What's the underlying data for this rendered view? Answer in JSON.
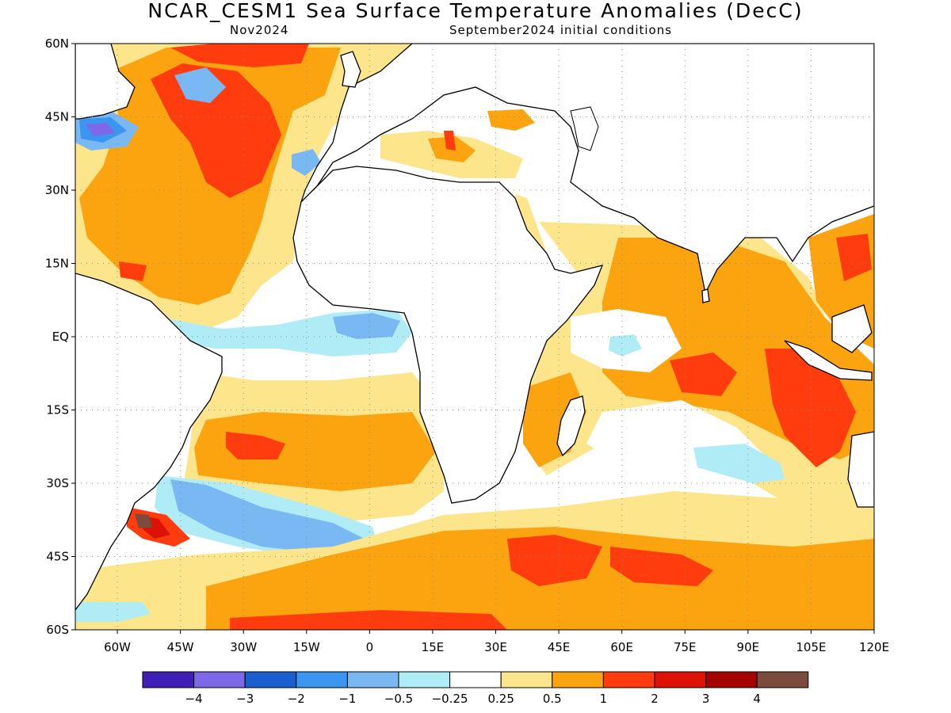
{
  "title": "NCAR_CESM1 Sea Surface Temperature Anomalies (DecC)",
  "subtitle_left": "Nov2024",
  "subtitle_right": "September2024 initial conditions",
  "map": {
    "lon_range": [
      -70,
      120
    ],
    "lat_range": [
      -60,
      60
    ],
    "y_tick_labels": [
      "60N",
      "45N",
      "30N",
      "15N",
      "EQ",
      "15S",
      "30S",
      "45S",
      "60S"
    ],
    "x_tick_labels": [
      "60W",
      "45W",
      "30W",
      "15W",
      "0",
      "15E",
      "30E",
      "45E",
      "60E",
      "75E",
      "90E",
      "105E",
      "120E"
    ],
    "grid": "dotted"
  },
  "colorbar": {
    "colors": [
      "#3f1fb5",
      "#7d68e8",
      "#1a5fcf",
      "#3a96f0",
      "#7ab8f4",
      "#b0ecf6",
      "#ffffff",
      "#fde58c",
      "#fca410",
      "#fe3c0e",
      "#dc1304",
      "#a60101",
      "#7b4b3e"
    ],
    "labels": [
      "−4",
      "−3",
      "−2",
      "−1",
      "−0.5",
      "−0.25",
      "0.25",
      "0.5",
      "1",
      "2",
      "3",
      "4"
    ]
  }
}
